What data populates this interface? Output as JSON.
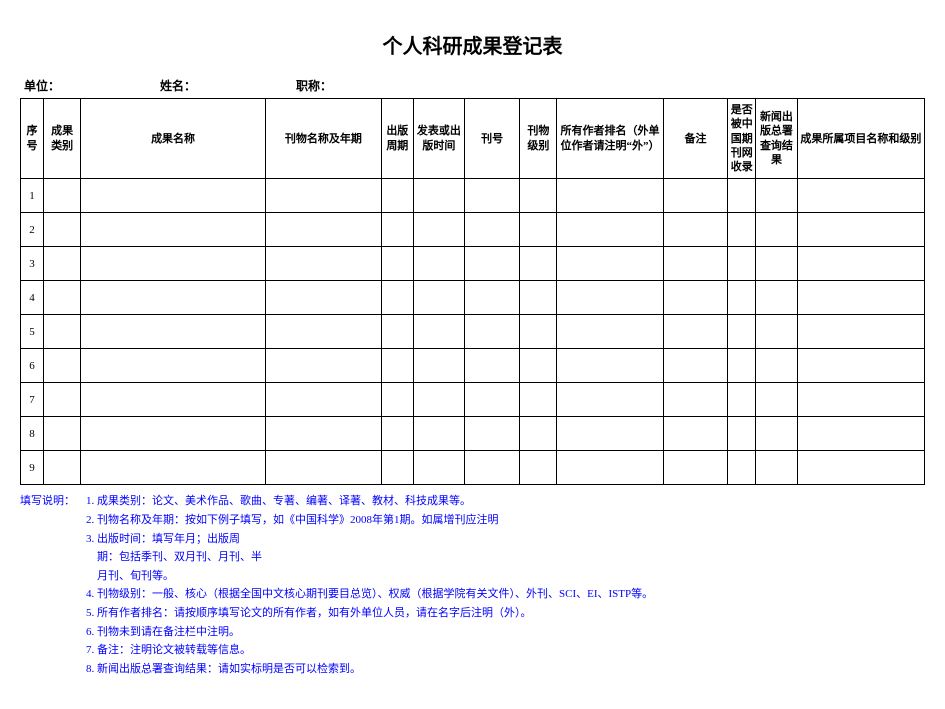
{
  "title": "个人科研成果登记表",
  "meta": {
    "unit_label": "单位：",
    "unit_value": "",
    "name_label": "姓名：",
    "name_value": "",
    "title_label": "职称：",
    "title_value": ""
  },
  "columns": [
    "序号",
    "成果类别",
    "成果名称",
    "刊物名称及年期",
    "出版周期",
    "发表或出版时间",
    "刊号",
    "刊物级别",
    "所有作者排名（外单位作者请注明“外”）",
    "备注",
    "是否被中国期刊网收录",
    "新闻出版总署查询结果",
    "成果所属项目名称和级别"
  ],
  "col_widths": [
    "20px",
    "32px",
    "160px",
    "100px",
    "28px",
    "44px",
    "48px",
    "32px",
    "92px",
    "56px",
    "24px",
    "36px",
    "110px"
  ],
  "row_numbers": [
    "1",
    "2",
    "3",
    "4",
    "5",
    "6",
    "7",
    "8",
    "9"
  ],
  "notes_label": "填写说明：",
  "notes": [
    "成果类别：论文、美术作品、歌曲、专著、编著、译著、教材、科技成果等。",
    "刊物名称及年期：按如下例子填写，如《中国科学》2008年第1期。如属增刊应注明",
    "出版时间：填写年月；出版周",
    "期：包括季刊、双月刊、月刊、半",
    "月刊、旬刊等。",
    "刊物级别：一般、核心（根据全国中文核心期刊要目总览）、权威（根据学院有关文件）、外刊、SCI、EI、ISTP等。",
    "所有作者排名：请按顺序填写论文的所有作者，如有外单位人员，请在名字后注明（外）。",
    "刊物未到请在备注栏中注明。",
    "备注：注明论文被转载等信息。",
    "新闻出版总署查询结果：请如实标明是否可以检索到。"
  ],
  "notes_color": "#0000ff"
}
